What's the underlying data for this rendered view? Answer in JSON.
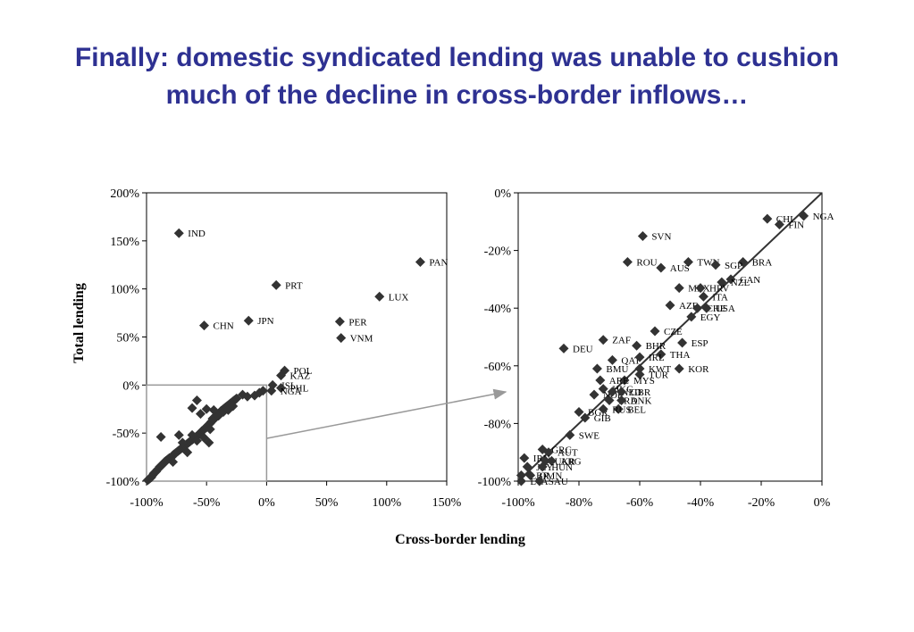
{
  "slide": {
    "title_line1": "Finally: domestic syndicated lending was unable to cushion",
    "title_line2": "much of the decline in cross-border inflows…"
  },
  "colors": {
    "title": "#2E3192",
    "marker": "#333333",
    "axis": "#000000",
    "zoom_box": "#999999",
    "fit_line": "#333333"
  },
  "chart_data": [
    {
      "id": "left",
      "type": "scatter",
      "xlabel": "Cross-border lending",
      "ylabel": "Total  lending",
      "xlim": [
        -100,
        150
      ],
      "ylim": [
        -100,
        200
      ],
      "xticks": [
        -100,
        -50,
        0,
        50,
        100,
        150
      ],
      "yticks": [
        -100,
        -50,
        0,
        50,
        100,
        150,
        200
      ],
      "xtick_labels": [
        "-100%",
        "-50%",
        "0%",
        "50%",
        "100%",
        "150%"
      ],
      "ytick_labels": [
        "-100%",
        "-50%",
        "0%",
        "50%",
        "100%",
        "150%",
        "200%"
      ],
      "grid": false,
      "zoom_region": {
        "x": [
          -100,
          0
        ],
        "y": [
          -100,
          0
        ]
      },
      "labeled_points": [
        {
          "label": "IND",
          "x": -73,
          "y": 158
        },
        {
          "label": "PAN",
          "x": 128,
          "y": 128
        },
        {
          "label": "PRT",
          "x": 8,
          "y": 104
        },
        {
          "label": "LUX",
          "x": 94,
          "y": 92
        },
        {
          "label": "JPN",
          "x": -15,
          "y": 67
        },
        {
          "label": "PER",
          "x": 61,
          "y": 66
        },
        {
          "label": "CHN",
          "x": -52,
          "y": 62
        },
        {
          "label": "VNM",
          "x": 62,
          "y": 49
        },
        {
          "label": "POL",
          "x": 15,
          "y": 15
        },
        {
          "label": "KAZ",
          "x": 12,
          "y": 10
        },
        {
          "label": "ISL",
          "x": 5,
          "y": 0
        },
        {
          "label": "PHL",
          "x": 12,
          "y": -3
        },
        {
          "label": "NGA",
          "x": 4,
          "y": -6
        }
      ],
      "points": [
        [
          -99,
          -99
        ],
        [
          -98,
          -98
        ],
        [
          -97,
          -97
        ],
        [
          -96,
          -96
        ],
        [
          -95,
          -94
        ],
        [
          -94,
          -92
        ],
        [
          -93,
          -91
        ],
        [
          -92,
          -90
        ],
        [
          -91,
          -88
        ],
        [
          -90,
          -87
        ],
        [
          -89,
          -85
        ],
        [
          -88,
          -84
        ],
        [
          -87,
          -83
        ],
        [
          -86,
          -82
        ],
        [
          -85,
          -80
        ],
        [
          -84,
          -79
        ],
        [
          -83,
          -78
        ],
        [
          -82,
          -77
        ],
        [
          -81,
          -76
        ],
        [
          -80,
          -76
        ],
        [
          -79,
          -75
        ],
        [
          -78,
          -73
        ],
        [
          -77,
          -72
        ],
        [
          -76,
          -71
        ],
        [
          -75,
          -70
        ],
        [
          -74,
          -69
        ],
        [
          -73,
          -68
        ],
        [
          -72,
          -67
        ],
        [
          -71,
          -66
        ],
        [
          -70,
          -65
        ],
        [
          -69,
          -64
        ],
        [
          -68,
          -63
        ],
        [
          -67,
          -62
        ],
        [
          -66,
          -61
        ],
        [
          -65,
          -60
        ],
        [
          -64,
          -59
        ],
        [
          -63,
          -58
        ],
        [
          -62,
          -57
        ],
        [
          -61,
          -56
        ],
        [
          -60,
          -55
        ],
        [
          -59,
          -54
        ],
        [
          -58,
          -53
        ],
        [
          -57,
          -52
        ],
        [
          -56,
          -51
        ],
        [
          -55,
          -50
        ],
        [
          -54,
          -48
        ],
        [
          -53,
          -47
        ],
        [
          -52,
          -46
        ],
        [
          -51,
          -45
        ],
        [
          -50,
          -44
        ],
        [
          -49,
          -42
        ],
        [
          -48,
          -41
        ],
        [
          -47,
          -40
        ],
        [
          -46,
          -38
        ],
        [
          -45,
          -37
        ],
        [
          -44,
          -36
        ],
        [
          -43,
          -34
        ],
        [
          -42,
          -33
        ],
        [
          -41,
          -31
        ],
        [
          -40,
          -30
        ],
        [
          -39,
          -29
        ],
        [
          -38,
          -27
        ],
        [
          -37,
          -26
        ],
        [
          -36,
          -25
        ],
        [
          -35,
          -24
        ],
        [
          -34,
          -23
        ],
        [
          -33,
          -22
        ],
        [
          -32,
          -21
        ],
        [
          -31,
          -20
        ],
        [
          -30,
          -19
        ],
        [
          -29,
          -18
        ],
        [
          -28,
          -17
        ],
        [
          -27,
          -16
        ],
        [
          -26,
          -15
        ],
        [
          -25,
          -14
        ],
        [
          -88,
          -54
        ],
        [
          -73,
          -52
        ],
        [
          -62,
          -52
        ],
        [
          -52,
          -55
        ],
        [
          -48,
          -60
        ],
        [
          -58,
          -58
        ],
        [
          -62,
          -24
        ],
        [
          -58,
          -16
        ],
        [
          -50,
          -25
        ],
        [
          -45,
          -35
        ],
        [
          -40,
          -32
        ],
        [
          -36,
          -28
        ],
        [
          -32,
          -26
        ],
        [
          -28,
          -22
        ],
        [
          -20,
          -10
        ],
        [
          -16,
          -12
        ],
        [
          -10,
          -11
        ],
        [
          -6,
          -8
        ],
        [
          -3,
          -6
        ],
        [
          -55,
          -30
        ],
        [
          -44,
          -26
        ],
        [
          -47,
          -46
        ],
        [
          -66,
          -70
        ],
        [
          -70,
          -60
        ],
        [
          -78,
          -80
        ]
      ]
    },
    {
      "id": "right",
      "type": "scatter",
      "xlim": [
        -100,
        0
      ],
      "ylim": [
        -100,
        0
      ],
      "xticks": [
        -100,
        -80,
        -60,
        -40,
        -20,
        0
      ],
      "yticks": [
        -100,
        -80,
        -60,
        -40,
        -20,
        0
      ],
      "xtick_labels": [
        "-100%",
        "-80%",
        "-60%",
        "-40%",
        "-20%",
        "0%"
      ],
      "ytick_labels": [
        "-100%",
        "-80%",
        "-60%",
        "-40%",
        "-20%",
        "0%"
      ],
      "grid": false,
      "fit_line": {
        "x": [
          -100,
          0
        ],
        "y": [
          -100,
          0
        ]
      },
      "labeled_points": [
        {
          "label": "CHL",
          "x": -18,
          "y": -9
        },
        {
          "label": "NGA",
          "x": -6,
          "y": -8
        },
        {
          "label": "FIN",
          "x": -14,
          "y": -11
        },
        {
          "label": "SVN",
          "x": -59,
          "y": -15
        },
        {
          "label": "TWN",
          "x": -44,
          "y": -24
        },
        {
          "label": "BRA",
          "x": -26,
          "y": -24
        },
        {
          "label": "ROU",
          "x": -64,
          "y": -24
        },
        {
          "label": "SGP",
          "x": -35,
          "y": -25
        },
        {
          "label": "AUS",
          "x": -53,
          "y": -26
        },
        {
          "label": "CAN",
          "x": -30,
          "y": -30
        },
        {
          "label": "NZL",
          "x": -33,
          "y": -31
        },
        {
          "label": "MEX",
          "x": -47,
          "y": -33
        },
        {
          "label": "HRV",
          "x": -40,
          "y": -33
        },
        {
          "label": "ITA",
          "x": -39,
          "y": -36
        },
        {
          "label": "AZE",
          "x": -50,
          "y": -39
        },
        {
          "label": "CHE",
          "x": -41,
          "y": -40
        },
        {
          "label": "USA",
          "x": -38,
          "y": -40
        },
        {
          "label": "EGY",
          "x": -43,
          "y": -43
        },
        {
          "label": "CZE",
          "x": -55,
          "y": -48
        },
        {
          "label": "ZAF",
          "x": -72,
          "y": -51
        },
        {
          "label": "BHR",
          "x": -61,
          "y": -53
        },
        {
          "label": "ESP",
          "x": -46,
          "y": -52
        },
        {
          "label": "DEU",
          "x": -85,
          "y": -54
        },
        {
          "label": "THA",
          "x": -53,
          "y": -56
        },
        {
          "label": "QAT",
          "x": -69,
          "y": -58
        },
        {
          "label": "IRL",
          "x": -60,
          "y": -57
        },
        {
          "label": "BMU",
          "x": -74,
          "y": -61
        },
        {
          "label": "KWT",
          "x": -60,
          "y": -61
        },
        {
          "label": "KOR",
          "x": -47,
          "y": -61
        },
        {
          "label": "TUR",
          "x": -60,
          "y": -63
        },
        {
          "label": "MYS",
          "x": -65,
          "y": -65
        },
        {
          "label": "ARE",
          "x": -73,
          "y": -65
        },
        {
          "label": "HKG",
          "x": -72,
          "y": -68
        },
        {
          "label": "NOR",
          "x": -75,
          "y": -70
        },
        {
          "label": "NLD",
          "x": -69,
          "y": -69
        },
        {
          "label": "GBR",
          "x": -66,
          "y": -69
        },
        {
          "label": "FRA",
          "x": -70,
          "y": -72
        },
        {
          "label": "DNK",
          "x": -66,
          "y": -72
        },
        {
          "label": "BEL",
          "x": -67,
          "y": -75
        },
        {
          "label": "BGR",
          "x": -80,
          "y": -76
        },
        {
          "label": "RUS",
          "x": -72,
          "y": -75
        },
        {
          "label": "GIB",
          "x": -78,
          "y": -78
        },
        {
          "label": "SWE",
          "x": -83,
          "y": -84
        },
        {
          "label": "GRC",
          "x": -92,
          "y": -89
        },
        {
          "label": "AUT",
          "x": -90,
          "y": -90
        },
        {
          "label": "IRN",
          "x": -98,
          "y": -92
        },
        {
          "label": "UKR",
          "x": -91,
          "y": -93
        },
        {
          "label": "ARG",
          "x": -89,
          "y": -93
        },
        {
          "label": "JEY",
          "x": -97,
          "y": -95
        },
        {
          "label": "HUN",
          "x": -92,
          "y": -95
        },
        {
          "label": "LBR",
          "x": -99,
          "y": -98
        },
        {
          "label": "OMN",
          "x": -96,
          "y": -98
        },
        {
          "label": "LVA",
          "x": -99,
          "y": -100
        },
        {
          "label": "SAU",
          "x": -93,
          "y": -100
        }
      ]
    }
  ]
}
